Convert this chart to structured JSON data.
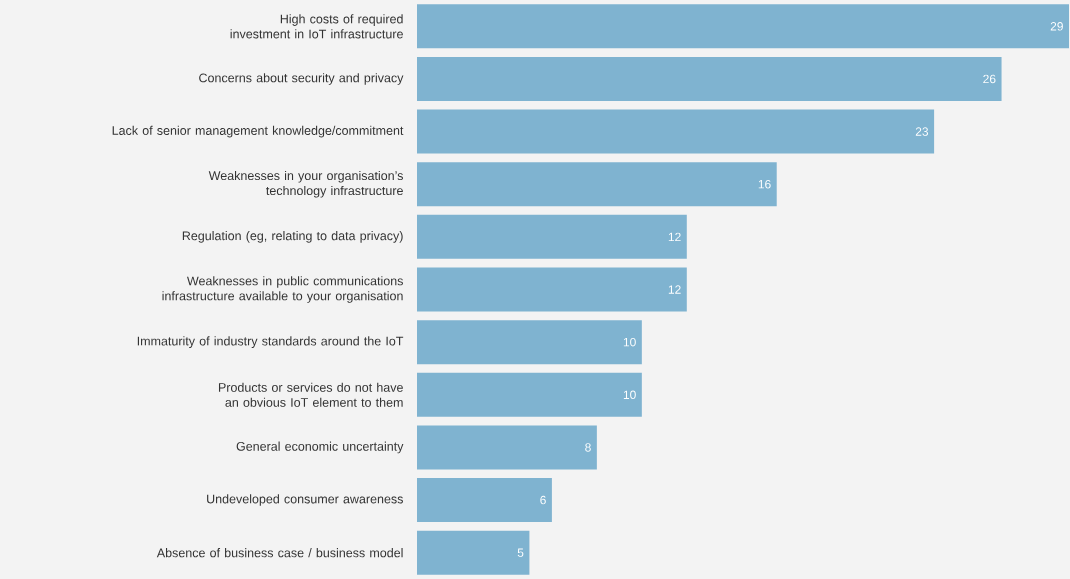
{
  "chart_data": {
    "type": "bar",
    "orientation": "horizontal",
    "data_labels": true,
    "color": "#7fb3d0",
    "categories": [
      "High costs of required investment in IoT infrastructure",
      "Concerns about security and privacy",
      "Lack of senior management knowledge/commitment",
      "Weaknesses in your organisation’s technology infrastructure",
      "Regulation (eg, relating to data privacy)",
      "Weaknesses in public communications infrastructure available to your organisation",
      "Immaturity of industry standards around the IoT",
      "Products or services do not have an obvious IoT element to them",
      "General economic uncertainty",
      "Undeveloped consumer awareness",
      "Absence of business case / business model"
    ],
    "values": [
      29,
      26,
      23,
      16,
      12,
      12,
      10,
      10,
      8,
      6,
      5
    ]
  }
}
